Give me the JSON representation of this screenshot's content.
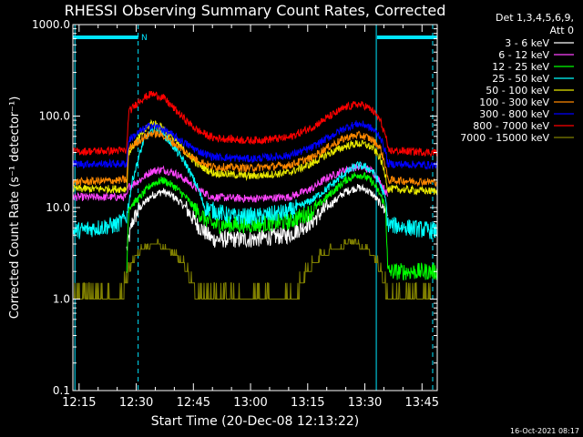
{
  "chart_data": {
    "type": "line",
    "title": "RHESSI Observing Summary Count Rates, Corrected",
    "xlabel": "Start Time (20-Dec-08 12:13:22)",
    "ylabel": "Corrected Count Rate (s⁻¹ detector⁻¹)",
    "y_scale": "log",
    "ylim": [
      0.1,
      1000
    ],
    "y_ticks": [
      "0.1",
      "1.0",
      "10.0",
      "100.0",
      "1000.0"
    ],
    "x_ticks": [
      "12:15",
      "12:30",
      "12:45",
      "13:00",
      "13:15",
      "13:30",
      "13:45"
    ],
    "x_tick_minutes": [
      15,
      30,
      45,
      60,
      75,
      90,
      105
    ],
    "xlim_minutes": [
      13.37,
      109
    ],
    "legend_header": [
      "Det 1,3,4,5,6,9,",
      "Att 0"
    ],
    "legend_position": "top-right, outside plot",
    "annotation_N": "N",
    "footer_date": "16-Oct-2021 08:17",
    "night_bars": [
      [
        13.37,
        30.5
      ],
      [
        93.2,
        109
      ]
    ],
    "dashed_lines_minutes": [
      30.5,
      107.8
    ],
    "solid_lines_minutes": [
      13.9,
      93.0
    ],
    "series": [
      {
        "name": "3 - 6 keV",
        "color": "#ffffff",
        "x": [
          27.5,
          29,
          31,
          34,
          37,
          40,
          43,
          46,
          50,
          60,
          70,
          76,
          80,
          85,
          88,
          90,
          92,
          94,
          96
        ],
        "y": [
          3.5,
          7.0,
          10,
          13.5,
          15,
          13,
          10,
          6.5,
          4.5,
          4.5,
          5,
          7,
          10,
          15,
          16.5,
          16,
          14,
          11,
          9
        ]
      },
      {
        "name": "6 - 12 keV",
        "color": "#ff44ff",
        "x": [
          13.37,
          27.5,
          28,
          31,
          34,
          37,
          40,
          43,
          46,
          50,
          60,
          70,
          76,
          80,
          85,
          88,
          90,
          92,
          94,
          95.5,
          96
        ],
        "y": [
          13,
          13,
          17,
          20,
          25,
          26,
          24,
          20,
          16,
          13,
          12.5,
          13,
          16,
          21,
          26,
          28,
          27,
          25,
          19,
          15,
          13
        ]
      },
      {
        "name": "12 - 25 keV",
        "color": "#00ff00",
        "x": [
          27.5,
          28,
          31,
          34,
          37,
          40,
          43,
          46,
          50,
          60,
          70,
          76,
          80,
          85,
          88,
          90,
          92,
          94,
          95.5,
          96,
          109
        ],
        "y": [
          2,
          10,
          13,
          18,
          20,
          17,
          13,
          9,
          6.5,
          6.5,
          7,
          9,
          13,
          20,
          23,
          22,
          19,
          14,
          10,
          2,
          2
        ]
      },
      {
        "name": "25 - 50 keV",
        "color": "#00ffff",
        "x": [
          13.37,
          25,
          27.5,
          29,
          32,
          35,
          37,
          40,
          43,
          46,
          48,
          55,
          62,
          70,
          76,
          80,
          85,
          88,
          90,
          92,
          94,
          95.5,
          96,
          109
        ],
        "y": [
          5.5,
          6.5,
          8,
          20,
          55,
          75,
          65,
          45,
          30,
          17,
          10,
          8,
          8,
          9,
          12,
          16,
          24,
          29,
          28,
          25,
          18,
          12,
          6.5,
          5.5
        ]
      },
      {
        "name": "50 - 100 keV",
        "color": "#e8e800",
        "x": [
          13.37,
          27.5,
          28,
          31,
          34,
          37,
          40,
          43,
          46,
          50,
          60,
          70,
          76,
          80,
          85,
          88,
          90,
          92,
          94,
          95.5,
          96,
          109
        ],
        "y": [
          16,
          16,
          40,
          60,
          85,
          75,
          55,
          40,
          30,
          24,
          22,
          24,
          30,
          38,
          47,
          50,
          49,
          45,
          35,
          22,
          16,
          15
        ]
      },
      {
        "name": "100 - 300 keV",
        "color": "#ff8800",
        "x": [
          13.37,
          27.5,
          28,
          31,
          34,
          37,
          40,
          43,
          46,
          50,
          60,
          70,
          76,
          80,
          85,
          88,
          90,
          92,
          94,
          95.5,
          96,
          109
        ],
        "y": [
          19,
          20,
          44,
          55,
          65,
          62,
          50,
          40,
          33,
          28,
          27,
          29,
          35,
          45,
          58,
          62,
          60,
          55,
          45,
          28,
          20,
          19
        ]
      },
      {
        "name": "300 - 800 keV",
        "color": "#0000ff",
        "x": [
          13.37,
          27.5,
          28,
          31,
          34,
          37,
          40,
          43,
          46,
          50,
          60,
          70,
          76,
          80,
          85,
          88,
          90,
          92,
          94,
          95.5,
          96,
          109
        ],
        "y": [
          30,
          30,
          55,
          68,
          80,
          72,
          60,
          50,
          42,
          36,
          34,
          37,
          45,
          57,
          75,
          82,
          80,
          72,
          60,
          40,
          30,
          29
        ]
      },
      {
        "name": "800 - 7000 keV",
        "color": "#ff0000",
        "x": [
          13.37,
          27.5,
          28,
          31,
          34,
          37,
          40,
          43,
          46,
          50,
          60,
          70,
          76,
          80,
          85,
          88,
          90,
          92,
          94,
          95.5,
          96,
          109
        ],
        "y": [
          41,
          42,
          110,
          150,
          175,
          160,
          120,
          90,
          70,
          58,
          54,
          58,
          75,
          95,
          125,
          135,
          130,
          115,
          90,
          60,
          42,
          40
        ]
      },
      {
        "name": "7000 - 15000 keV",
        "color": "#808000",
        "x": [
          13.37,
          26,
          27.5,
          28,
          30,
          32,
          34,
          36,
          38,
          40,
          42,
          44,
          45.5,
          46,
          48,
          60,
          72,
          73,
          75,
          77,
          79,
          81,
          83,
          85,
          87,
          89,
          91,
          93,
          94,
          95,
          96,
          109
        ],
        "y": [
          1,
          1,
          1.5,
          2,
          3,
          3.5,
          3.8,
          3.8,
          3.5,
          3,
          2.5,
          1.7,
          1.2,
          1,
          1,
          1,
          1,
          1.3,
          2,
          2.5,
          3,
          3.3,
          3.6,
          3.8,
          3.9,
          3.7,
          3.3,
          2.6,
          2,
          1.5,
          1,
          1
        ]
      }
    ]
  }
}
